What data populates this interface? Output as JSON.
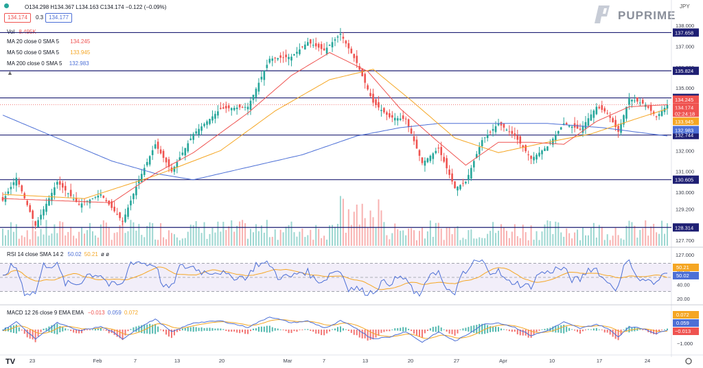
{
  "header": {
    "symbol_icon": "eye-icon",
    "ohlc": "O134.298 H134.367 L134.163 C134.174 −0.122 (−0.09%)",
    "bid": "134.174",
    "spread": "0.3",
    "ask": "134.177",
    "currency": "JPY"
  },
  "legend": {
    "vol": "Vol",
    "vol_value": "8.495K",
    "ma20": "MA 20 close 0 SMA 5",
    "ma20_value": "134.245",
    "ma50": "MA 50 close 0 SMA 5",
    "ma50_value": "133.945",
    "ma200": "MA 200 close 0 SMA 5",
    "ma200_value": "132.983",
    "rsi": "RSI 14 close SMA 14 2",
    "rsi_v1": "50.02",
    "rsi_v2": "50.21",
    "rsi_v3": "ø ø",
    "macd": "MACD 12 26 close 9 EMA EMA",
    "macd_v1": "−0.013",
    "macd_v2": "0.059",
    "macd_v3": "0.072"
  },
  "brand": {
    "name": "PUPRIME"
  },
  "colors": {
    "up": "#26a69a",
    "down": "#ef5350",
    "ma20": "#ef5350",
    "ma50": "#f5a623",
    "ma200": "#4c6fd6",
    "hline": "#1e1f73",
    "rsi": "#4c6fd6",
    "rsi_ma": "#f5a623"
  },
  "chart_data": [
    {
      "type": "candlestick",
      "title": "",
      "ylim": [
        127.5,
        138.1
      ],
      "y_ticks": [
        "138.000",
        "137.000",
        "136.000",
        "135.000",
        "134.000",
        "133.000",
        "132.000",
        "131.000",
        "130.000",
        "129.200",
        "128.400",
        "127.700",
        "127.000"
      ],
      "x_ticks": [
        "23",
        "Feb",
        "7",
        "13",
        "20",
        "Mar",
        "7",
        "13",
        "20",
        "27",
        "Apr",
        "10",
        "17",
        "24"
      ],
      "horizontal_levels": [
        "137.658",
        "135.824",
        "134.526",
        "132.744",
        "130.605",
        "128.314"
      ],
      "price_labels": [
        "134.245",
        "134.174",
        "02:24:18",
        "133.945",
        "132.983"
      ],
      "close_path": [
        [
          0,
          129.6
        ],
        [
          5,
          130.7
        ],
        [
          12,
          128.4
        ],
        [
          20,
          130.5
        ],
        [
          28,
          129.4
        ],
        [
          36,
          129.9
        ],
        [
          44,
          128.6
        ],
        [
          50,
          130.6
        ],
        [
          56,
          132.3
        ],
        [
          62,
          131.0
        ],
        [
          70,
          132.8
        ],
        [
          80,
          134.0
        ],
        [
          90,
          134.1
        ],
        [
          98,
          136.4
        ],
        [
          106,
          136.5
        ],
        [
          112,
          137.2
        ],
        [
          118,
          136.8
        ],
        [
          124,
          137.6
        ],
        [
          130,
          136.2
        ],
        [
          136,
          134.3
        ],
        [
          142,
          133.6
        ],
        [
          148,
          133.5
        ],
        [
          154,
          131.4
        ],
        [
          160,
          132.1
        ],
        [
          166,
          130.2
        ],
        [
          170,
          130.5
        ],
        [
          176,
          132.5
        ],
        [
          182,
          133.3
        ],
        [
          188,
          132.7
        ],
        [
          194,
          131.6
        ],
        [
          200,
          132.2
        ],
        [
          206,
          133.3
        ],
        [
          212,
          133.0
        ],
        [
          218,
          134.1
        ],
        [
          222,
          133.8
        ],
        [
          226,
          132.9
        ],
        [
          230,
          134.5
        ],
        [
          236,
          134.2
        ],
        [
          240,
          133.6
        ],
        [
          244,
          134.2
        ]
      ],
      "ma20_path": [
        [
          0,
          129.7
        ],
        [
          20,
          129.6
        ],
        [
          40,
          129.5
        ],
        [
          56,
          130.9
        ],
        [
          70,
          131.9
        ],
        [
          90,
          133.8
        ],
        [
          106,
          135.6
        ],
        [
          120,
          136.7
        ],
        [
          134,
          135.8
        ],
        [
          146,
          134.0
        ],
        [
          160,
          132.4
        ],
        [
          170,
          131.3
        ],
        [
          182,
          132.4
        ],
        [
          194,
          132.4
        ],
        [
          206,
          132.3
        ],
        [
          218,
          133.4
        ],
        [
          230,
          134.1
        ],
        [
          244,
          134.2
        ]
      ],
      "ma50_path": [
        [
          0,
          129.9
        ],
        [
          30,
          129.7
        ],
        [
          56,
          130.8
        ],
        [
          80,
          132.0
        ],
        [
          100,
          133.9
        ],
        [
          120,
          135.4
        ],
        [
          136,
          135.9
        ],
        [
          150,
          134.4
        ],
        [
          166,
          132.6
        ],
        [
          182,
          131.9
        ],
        [
          200,
          132.4
        ],
        [
          216,
          132.8
        ],
        [
          232,
          133.5
        ],
        [
          244,
          134.0
        ]
      ],
      "ma200_path": [
        [
          0,
          133.7
        ],
        [
          20,
          132.6
        ],
        [
          40,
          131.5
        ],
        [
          56,
          130.9
        ],
        [
          70,
          130.6
        ],
        [
          90,
          131.2
        ],
        [
          110,
          131.8
        ],
        [
          130,
          132.7
        ],
        [
          146,
          133.1
        ],
        [
          160,
          133.3
        ],
        [
          176,
          133.3
        ],
        [
          200,
          133.3
        ],
        [
          220,
          133.1
        ],
        [
          244,
          132.7
        ]
      ]
    },
    {
      "type": "line",
      "title": "RSI 14 close SMA 14 2",
      "ylim": [
        15,
        85
      ],
      "y_ticks": [
        "60.00",
        "40.00",
        "20.00"
      ],
      "levels": [
        70,
        50,
        30
      ],
      "value_labels": [
        "50.21",
        "50.02"
      ]
    },
    {
      "type": "line",
      "title": "MACD 12 26 close 9 EMA EMA",
      "ylim": [
        -1.1,
        1.3
      ],
      "y_ticks": [
        "1.000",
        "−1.000"
      ],
      "value_labels": [
        "0.072",
        "0.059",
        "−0.013"
      ]
    }
  ]
}
